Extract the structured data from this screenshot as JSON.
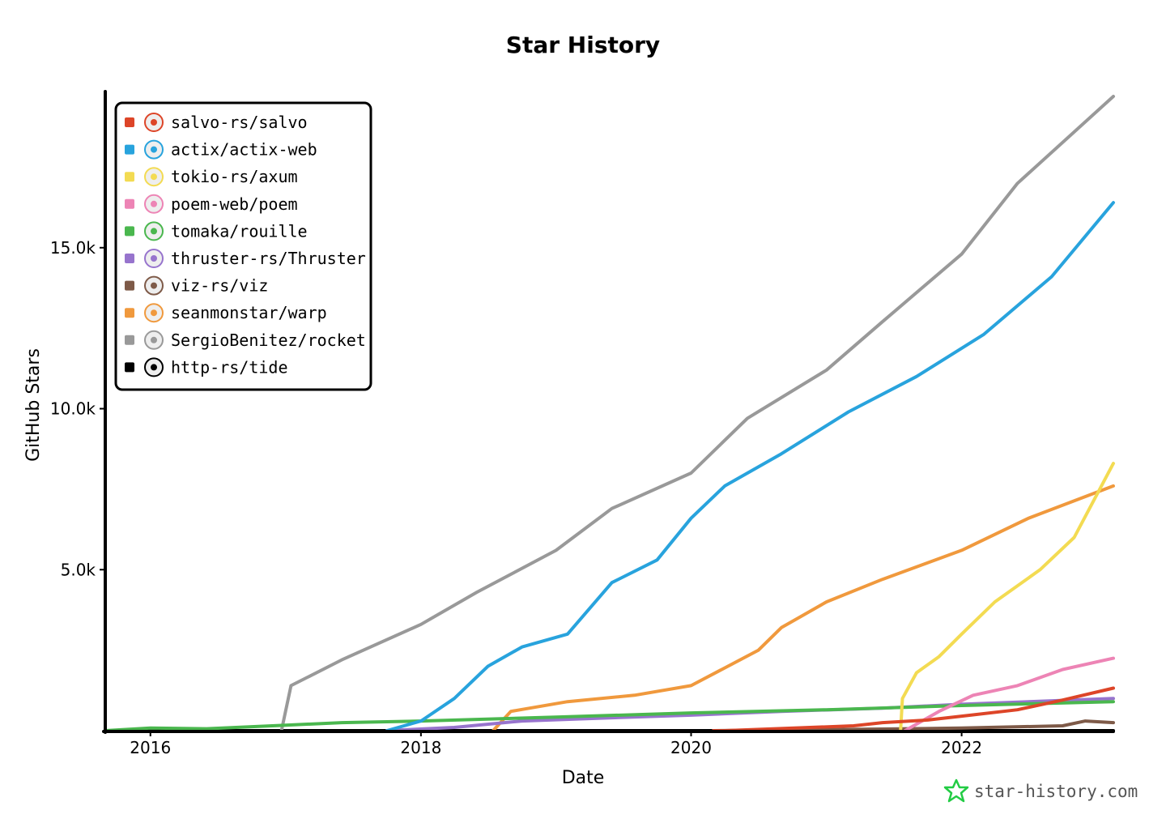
{
  "chart_data": {
    "type": "line",
    "title": "Star History",
    "xlabel": "Date",
    "ylabel": "GitHub Stars",
    "x_range": [
      "2015-09-01",
      "2023-02-15"
    ],
    "ylim": [
      0,
      19800
    ],
    "x_ticks": [
      "2016",
      "2018",
      "2020",
      "2022"
    ],
    "y_ticks": [
      "5.0k",
      "10.0k",
      "15.0k"
    ],
    "legend_position": "top-left",
    "watermark": "star-history.com",
    "series": [
      {
        "name": "salvo-rs/salvo",
        "color": "#dd4528",
        "icon": "salvo-logo-icon",
        "points": [
          [
            "2020-03-01",
            0
          ],
          [
            "2020-04-01",
            0
          ],
          [
            "2021-03-15",
            150
          ],
          [
            "2021-06-01",
            250
          ],
          [
            "2021-10-01",
            330
          ],
          [
            "2022-01-01",
            450
          ],
          [
            "2022-06-01",
            650
          ],
          [
            "2022-10-01",
            950
          ],
          [
            "2023-02-15",
            1320
          ]
        ]
      },
      {
        "name": "actix/actix-web",
        "color": "#28a3dd",
        "icon": "actix-logo-icon",
        "points": [
          [
            "2017-10-01",
            0
          ],
          [
            "2018-01-01",
            300
          ],
          [
            "2018-04-01",
            1000
          ],
          [
            "2018-07-01",
            2000
          ],
          [
            "2018-10-01",
            2600
          ],
          [
            "2019-02-01",
            3000
          ],
          [
            "2019-06-01",
            4600
          ],
          [
            "2019-10-01",
            5300
          ],
          [
            "2020-01-01",
            6600
          ],
          [
            "2020-04-01",
            7600
          ],
          [
            "2020-09-01",
            8600
          ],
          [
            "2021-03-01",
            9900
          ],
          [
            "2021-09-01",
            11000
          ],
          [
            "2022-03-01",
            12300
          ],
          [
            "2022-09-01",
            14100
          ],
          [
            "2023-02-15",
            16400
          ]
        ]
      },
      {
        "name": "tokio-rs/axum",
        "color": "#f3db52",
        "icon": "axum-logo-icon",
        "points": [
          [
            "2021-07-20",
            0
          ],
          [
            "2021-07-25",
            1000
          ],
          [
            "2021-09-01",
            1800
          ],
          [
            "2021-11-01",
            2300
          ],
          [
            "2022-01-01",
            3000
          ],
          [
            "2022-04-01",
            4000
          ],
          [
            "2022-08-01",
            5000
          ],
          [
            "2022-11-01",
            6000
          ],
          [
            "2023-02-15",
            8300
          ]
        ]
      },
      {
        "name": "poem-web/poem",
        "color": "#ed84b5",
        "icon": "poem-logo-icon",
        "points": [
          [
            "2021-08-01",
            0
          ],
          [
            "2021-11-01",
            600
          ],
          [
            "2022-02-01",
            1100
          ],
          [
            "2022-06-01",
            1400
          ],
          [
            "2022-10-01",
            1900
          ],
          [
            "2023-02-15",
            2250
          ]
        ]
      },
      {
        "name": "tomaka/rouille",
        "color": "#4ab74e",
        "icon": "rouille-logo-icon",
        "points": [
          [
            "2015-09-01",
            0
          ],
          [
            "2016-01-01",
            80
          ],
          [
            "2016-06-01",
            60
          ],
          [
            "2017-01-01",
            170
          ],
          [
            "2017-06-01",
            250
          ],
          [
            "2018-01-01",
            300
          ],
          [
            "2019-01-01",
            420
          ],
          [
            "2020-01-01",
            550
          ],
          [
            "2021-01-01",
            650
          ],
          [
            "2022-01-01",
            780
          ],
          [
            "2023-02-15",
            900
          ]
        ]
      },
      {
        "name": "thruster-rs/Thruster",
        "color": "#9774cd",
        "icon": "thruster-logo-icon",
        "points": [
          [
            "2017-10-01",
            0
          ],
          [
            "2018-04-01",
            100
          ],
          [
            "2018-10-01",
            300
          ],
          [
            "2019-06-01",
            400
          ],
          [
            "2020-01-01",
            480
          ],
          [
            "2020-09-01",
            600
          ],
          [
            "2021-06-01",
            700
          ],
          [
            "2022-01-01",
            820
          ],
          [
            "2023-02-15",
            1000
          ]
        ]
      },
      {
        "name": "viz-rs/viz",
        "color": "#7e5a48",
        "icon": "viz-logo-icon",
        "points": [
          [
            "2020-03-01",
            0
          ],
          [
            "2021-01-01",
            30
          ],
          [
            "2022-01-01",
            80
          ],
          [
            "2022-10-01",
            150
          ],
          [
            "2022-12-01",
            300
          ],
          [
            "2023-02-15",
            250
          ]
        ]
      },
      {
        "name": "seanmonstar/warp",
        "color": "#f0993d",
        "icon": "warp-avatar-icon",
        "points": [
          [
            "2018-07-15",
            0
          ],
          [
            "2018-09-01",
            600
          ],
          [
            "2019-02-01",
            900
          ],
          [
            "2019-08-01",
            1100
          ],
          [
            "2020-01-01",
            1400
          ],
          [
            "2020-07-01",
            2500
          ],
          [
            "2020-09-01",
            3200
          ],
          [
            "2021-01-01",
            4000
          ],
          [
            "2021-06-01",
            4700
          ],
          [
            "2022-01-01",
            5600
          ],
          [
            "2022-07-01",
            6600
          ],
          [
            "2023-02-15",
            7600
          ]
        ]
      },
      {
        "name": "SergioBenitez/rocket",
        "color": "#999999",
        "icon": "rocket-avatar-icon",
        "points": [
          [
            "2016-12-20",
            0
          ],
          [
            "2017-01-15",
            1400
          ],
          [
            "2017-06-01",
            2200
          ],
          [
            "2018-01-01",
            3300
          ],
          [
            "2018-06-01",
            4300
          ],
          [
            "2019-01-01",
            5600
          ],
          [
            "2019-06-01",
            6900
          ],
          [
            "2020-01-01",
            8000
          ],
          [
            "2020-06-01",
            9700
          ],
          [
            "2021-01-01",
            11200
          ],
          [
            "2021-06-01",
            12700
          ],
          [
            "2022-01-01",
            14800
          ],
          [
            "2022-06-01",
            17000
          ],
          [
            "2023-02-15",
            19700
          ]
        ]
      },
      {
        "name": "http-rs/tide",
        "color": "#000000",
        "icon": "tide-logo-icon",
        "points": [
          [
            "2015-09-01",
            0
          ],
          [
            "2023-02-15",
            0
          ]
        ]
      }
    ]
  }
}
